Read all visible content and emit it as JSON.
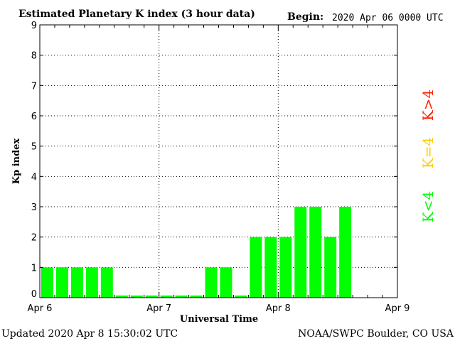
{
  "header": {
    "title": "Estimated Planetary K index (3 hour data)",
    "begin_label": "Begin:",
    "begin_value": "2020 Apr 06 0000 UTC"
  },
  "footer": {
    "updated": "Updated 2020 Apr  8 15:30:02 UTC",
    "source": "NOAA/SWPC Boulder, CO USA"
  },
  "legend": {
    "high": "K>4",
    "mid": "K=4",
    "low": "K<4"
  },
  "colors": {
    "low": "#00ff00",
    "mid": "#ffcc00",
    "high": "#ff2000"
  },
  "chart_data": {
    "type": "bar",
    "title": "Estimated Planetary K index (3 hour data)",
    "xlabel": "Universal Time",
    "ylabel": "Kp index",
    "ylim": [
      0,
      9
    ],
    "yticks": [
      "0",
      "1",
      "2",
      "3",
      "4",
      "5",
      "6",
      "7",
      "8",
      "9"
    ],
    "xticks": [
      "Apr 6",
      "Apr 7",
      "Apr 8",
      "Apr 9"
    ],
    "grid": "dotted",
    "values": [
      1,
      1,
      1,
      1,
      1,
      0,
      0,
      0,
      0,
      0,
      0,
      1,
      1,
      0,
      2,
      2,
      2,
      3,
      3,
      2,
      3
    ]
  }
}
